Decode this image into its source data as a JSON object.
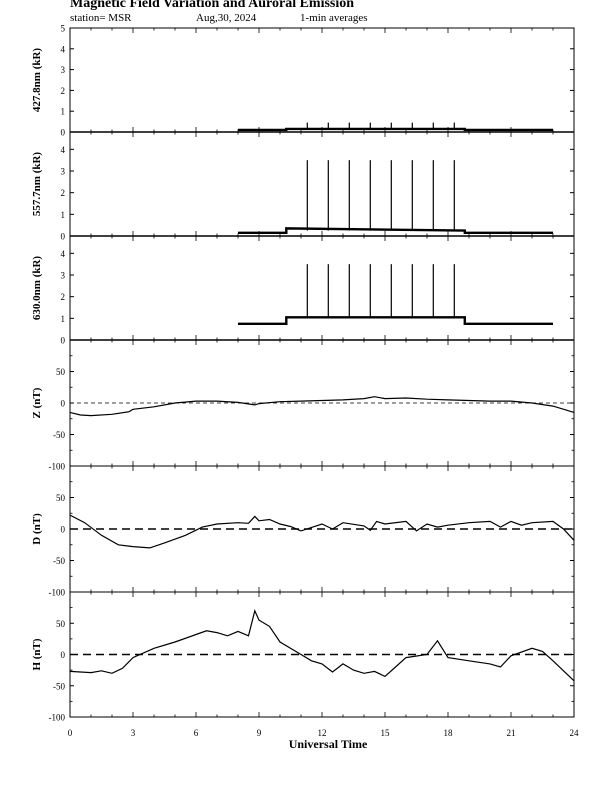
{
  "header": {
    "title": "Magnetic Field Variation and Auroral Emission",
    "station": "station= MSR",
    "date": "Aug,30, 2024",
    "averaging": "1-min averages"
  },
  "chart_data": [
    {
      "type": "line",
      "ylabel": "427.8nm (kR)",
      "ylim": [
        0,
        5
      ],
      "yticks": [
        "0",
        "1",
        "2",
        "3",
        "4",
        "5"
      ],
      "x": [
        8.0,
        10.3,
        10.3,
        18.8,
        18.8,
        23.0
      ],
      "y": [
        0.1,
        0.1,
        0.15,
        0.15,
        0.1,
        0.1
      ],
      "spikes": {
        "x": [
          11.3,
          12.3,
          13.3,
          14.3,
          15.3,
          16.3,
          17.3,
          18.3
        ],
        "y": 0.45
      }
    },
    {
      "type": "line",
      "ylabel": "557.7nm (kR)",
      "ylim": [
        0,
        4.8
      ],
      "yticks": [
        "0",
        "1",
        "2",
        "3",
        "4"
      ],
      "x": [
        8.0,
        10.3,
        10.3,
        18.8,
        18.8,
        23.0
      ],
      "y": [
        0.15,
        0.15,
        0.35,
        0.25,
        0.15,
        0.15
      ],
      "spikes": {
        "x": [
          11.3,
          12.3,
          13.3,
          14.3,
          15.3,
          16.3,
          17.3,
          18.3
        ],
        "y": 3.5
      }
    },
    {
      "type": "line",
      "ylabel": "630.0nm (kR)",
      "ylim": [
        0,
        4.8
      ],
      "yticks": [
        "0",
        "1",
        "2",
        "3",
        "4"
      ],
      "x": [
        8.0,
        10.3,
        10.3,
        18.8,
        18.8,
        23.0
      ],
      "y": [
        0.75,
        0.75,
        1.05,
        1.05,
        0.75,
        0.75
      ],
      "spikes": {
        "x": [
          11.3,
          12.3,
          13.3,
          14.3,
          15.3,
          16.3,
          17.3,
          18.3
        ],
        "y": 3.5
      }
    },
    {
      "type": "line",
      "ylabel": "Z (nT)",
      "ylim": [
        -100,
        100
      ],
      "yticks": [
        "-100",
        "-50",
        "0",
        "50"
      ],
      "x": [
        0,
        0.5,
        1,
        2,
        2.8,
        3,
        4,
        5,
        6,
        7,
        8,
        8.8,
        9,
        10,
        11,
        12,
        13,
        14,
        14.5,
        15,
        16,
        17,
        18,
        19,
        20,
        21,
        22,
        23,
        24
      ],
      "y": [
        -15,
        -19,
        -20,
        -18,
        -14,
        -10,
        -6,
        0,
        3,
        3,
        1,
        -3,
        -1,
        2,
        3,
        4,
        5,
        7,
        10,
        7,
        8,
        6,
        5,
        4,
        3,
        3,
        0,
        -5,
        -15
      ]
    },
    {
      "type": "line",
      "ylabel": "D (nT)",
      "ylim": [
        -100,
        100
      ],
      "yticks": [
        "-100",
        "-50",
        "0",
        "50"
      ],
      "x": [
        0,
        0.7,
        1.5,
        2.3,
        3,
        3.8,
        4.5,
        5.5,
        6.3,
        7,
        8,
        8.5,
        8.8,
        9,
        9.5,
        10,
        10.5,
        11,
        12,
        12.5,
        13,
        14,
        14.3,
        14.6,
        15,
        16,
        16.5,
        17,
        17.5,
        18,
        19,
        20,
        20.5,
        21,
        21.5,
        22,
        23,
        23.5,
        24
      ],
      "y": [
        22,
        10,
        -10,
        -25,
        -28,
        -30,
        -22,
        -10,
        3,
        8,
        10,
        9,
        20,
        13,
        15,
        8,
        4,
        -3,
        8,
        0,
        10,
        5,
        -2,
        12,
        8,
        12,
        -3,
        8,
        3,
        6,
        10,
        12,
        3,
        12,
        6,
        10,
        12,
        0,
        -18
      ]
    },
    {
      "type": "line",
      "ylabel": "H (nT)",
      "ylim": [
        -100,
        100
      ],
      "yticks": [
        "-100",
        "-50",
        "0",
        "50"
      ],
      "x": [
        0,
        1,
        1.5,
        2,
        2.5,
        3,
        4,
        5,
        6,
        6.5,
        7,
        7.5,
        8,
        8.5,
        8.8,
        9,
        9.5,
        10,
        11,
        11.5,
        12,
        12.5,
        13,
        13.5,
        14,
        14.5,
        15,
        15.5,
        16,
        17,
        17.5,
        18,
        19,
        20,
        20.5,
        21,
        22,
        22.5,
        23,
        24
      ],
      "y": [
        -27,
        -29,
        -26,
        -30,
        -22,
        -5,
        10,
        20,
        32,
        38,
        35,
        30,
        37,
        30,
        70,
        55,
        45,
        20,
        0,
        -10,
        -15,
        -28,
        -15,
        -25,
        -30,
        -27,
        -35,
        -20,
        -5,
        0,
        22,
        -5,
        -10,
        -15,
        -20,
        -2,
        10,
        5,
        -10,
        -42
      ]
    }
  ],
  "xaxis": {
    "label": "Universal Time",
    "xlim": [
      0,
      24
    ],
    "ticks": [
      "0",
      "3",
      "6",
      "9",
      "12",
      "15",
      "18",
      "21",
      "24"
    ]
  }
}
